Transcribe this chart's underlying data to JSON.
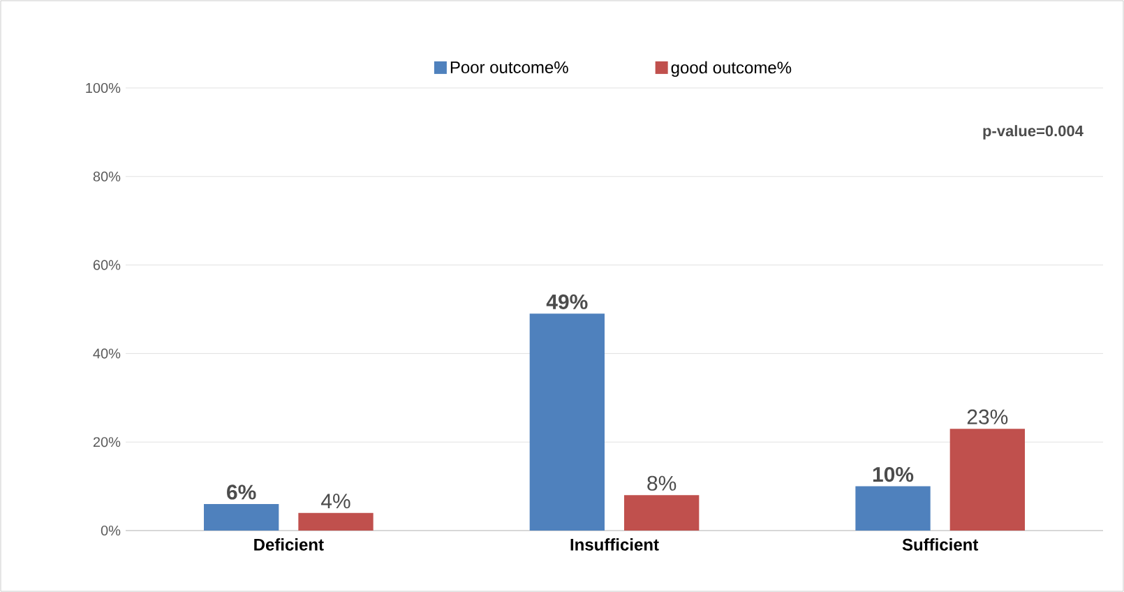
{
  "chart_data": {
    "type": "bar",
    "categories": [
      "Deficient",
      "Insufficient",
      "Sufficient"
    ],
    "series": [
      {
        "name": "Poor outcome%",
        "color": "#4f81bd",
        "values": [
          6,
          49,
          10
        ],
        "value_labels": [
          "6%",
          "49%",
          "10%"
        ]
      },
      {
        "name": "good outcome%",
        "color": "#c0504d",
        "values": [
          4,
          8,
          23
        ],
        "value_labels": [
          "4%",
          "8%",
          "23%"
        ]
      }
    ],
    "ylim": [
      0,
      100
    ],
    "yticks": [
      {
        "value": 0,
        "label": "0%"
      },
      {
        "value": 20,
        "label": "20%"
      },
      {
        "value": 40,
        "label": "40%"
      },
      {
        "value": 60,
        "label": "60%"
      },
      {
        "value": 80,
        "label": "80%"
      },
      {
        "value": 100,
        "label": "100%"
      }
    ],
    "grid": "y",
    "legend": "top",
    "annotations": [
      "p-value=0.004"
    ]
  }
}
